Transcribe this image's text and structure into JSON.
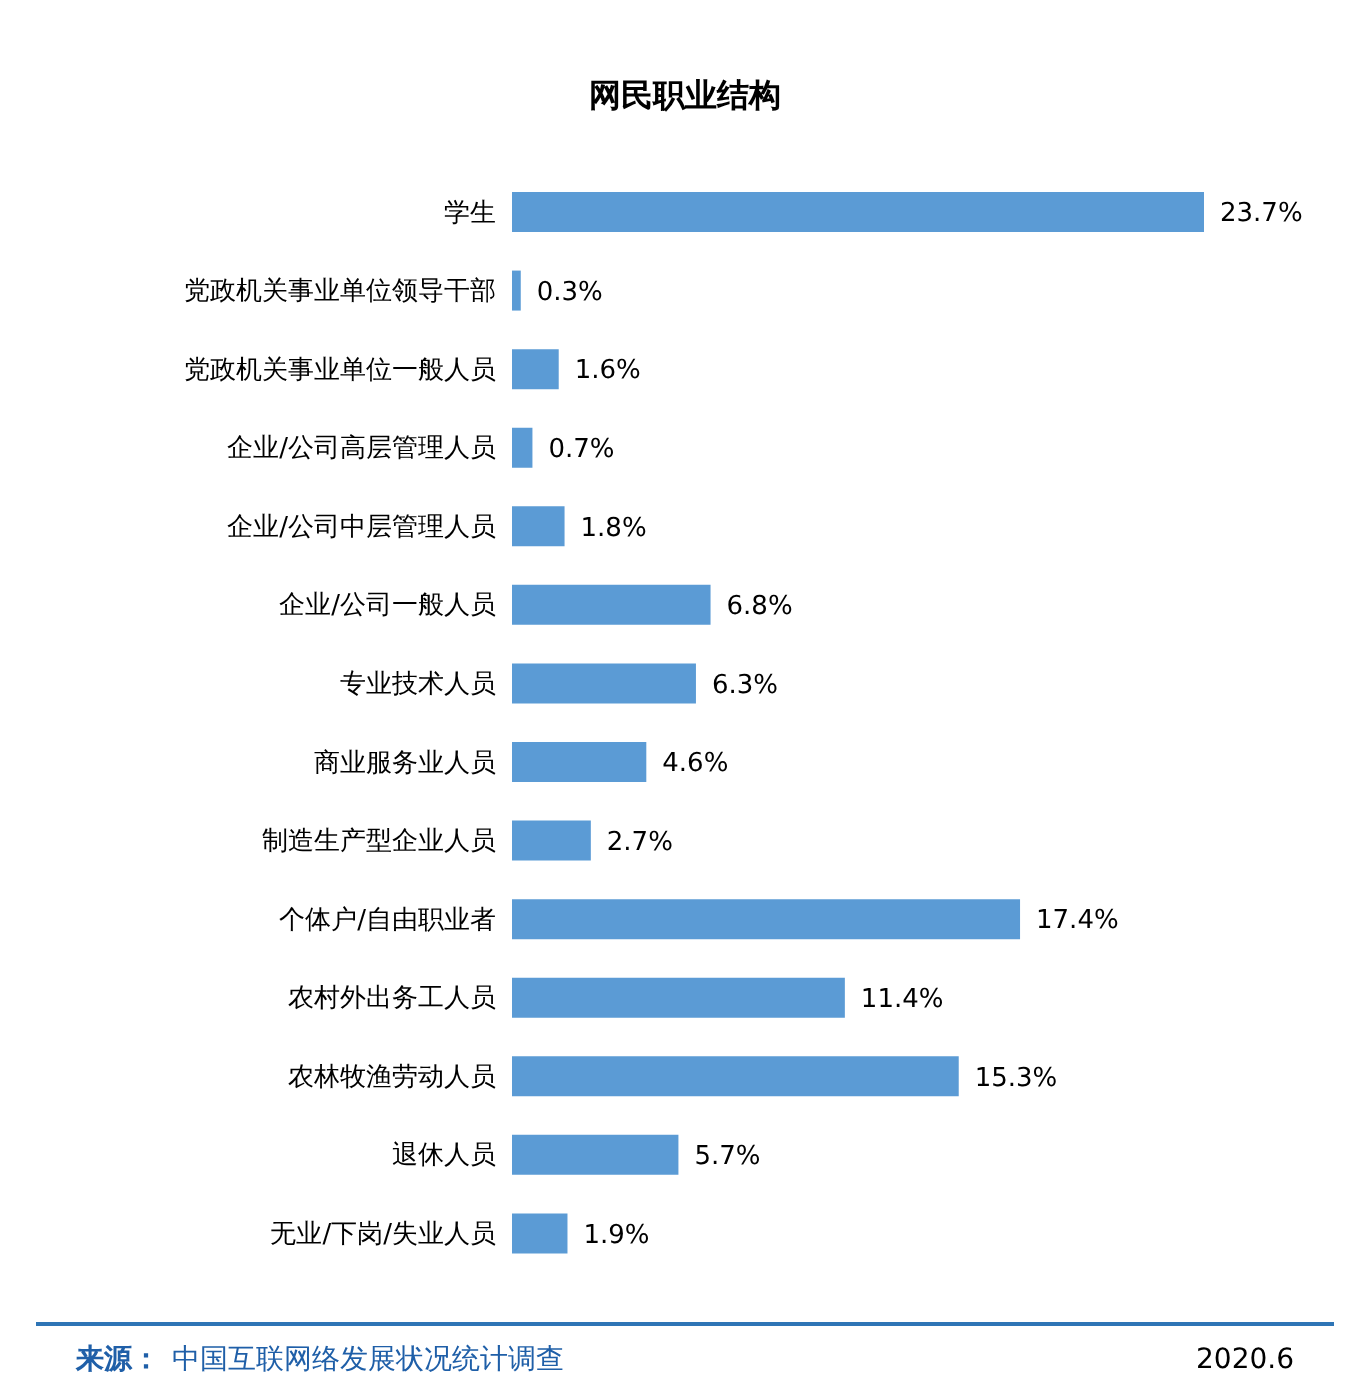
{
  "chart_data": {
    "type": "bar",
    "orientation": "horizontal",
    "title": "网民职业结构",
    "categories": [
      "学生",
      "党政机关事业单位领导干部",
      "党政机关事业单位一般人员",
      "企业/公司高层管理人员",
      "企业/公司中层管理人员",
      "企业/公司一般人员",
      "专业技术人员",
      "商业服务业人员",
      "制造生产型企业人员",
      "个体户/自由职业者",
      "农村外出务工人员",
      "农林牧渔劳动人员",
      "退休人员",
      "无业/下岗/失业人员"
    ],
    "values": [
      23.7,
      0.3,
      1.6,
      0.7,
      1.8,
      6.8,
      6.3,
      4.6,
      2.7,
      17.4,
      11.4,
      15.3,
      5.7,
      1.9
    ],
    "value_labels": [
      "23.7%",
      "0.3%",
      "1.6%",
      "0.7%",
      "1.8%",
      "6.8%",
      "6.3%",
      "4.6%",
      "2.7%",
      "17.4%",
      "11.4%",
      "15.3%",
      "5.7%",
      "1.9%"
    ],
    "color": "#5b9bd5",
    "grid": false,
    "legend": false,
    "annotations": [
      "来源：",
      "中国互联网络发展状况统计调查",
      "2020.6"
    ]
  }
}
